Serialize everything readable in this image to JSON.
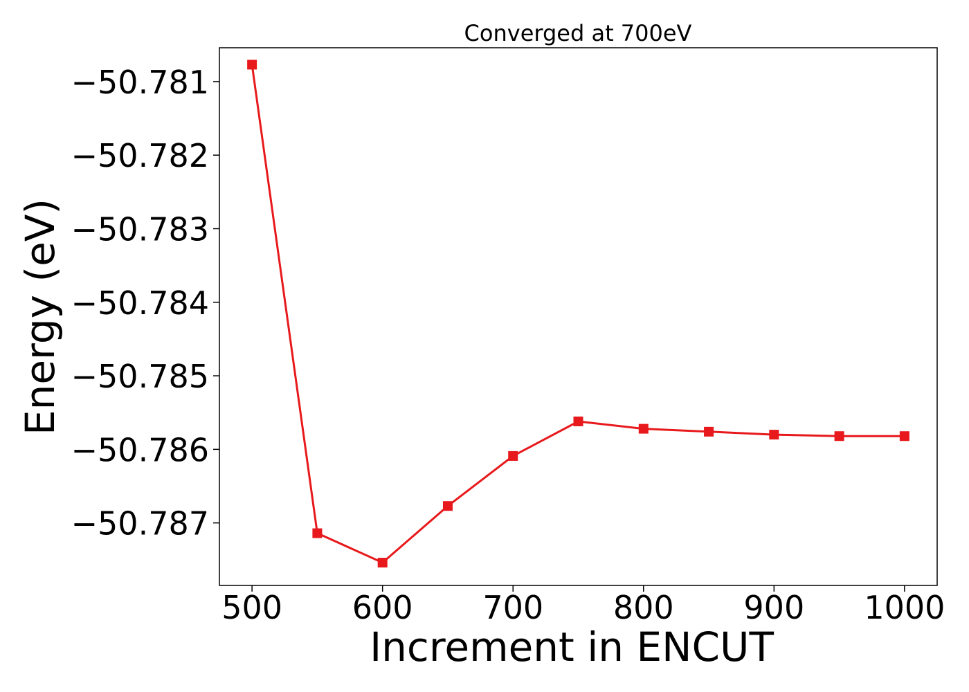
{
  "chart_data": {
    "type": "line",
    "title": "Converged at 700eV",
    "xlabel": "Increment in ENCUT",
    "ylabel": "Energy (eV)",
    "x": [
      500,
      550,
      600,
      650,
      700,
      750,
      800,
      850,
      900,
      950,
      1000
    ],
    "series": [
      {
        "values": [
          -50.78077,
          -50.78714,
          -50.78754,
          -50.78677,
          -50.78609,
          -50.78562,
          -50.78572,
          -50.78576,
          -50.7858,
          -50.78582,
          -50.78582
        ],
        "color": "#e8191c",
        "marker": "square"
      }
    ],
    "xticks": [
      500,
      600,
      700,
      800,
      900,
      1000
    ],
    "xtick_labels": [
      "500",
      "600",
      "700",
      "800",
      "900",
      "1000"
    ],
    "yticks": [
      -50.781,
      -50.782,
      -50.783,
      -50.784,
      -50.785,
      -50.786,
      -50.787
    ],
    "ytick_labels": [
      "−50.781",
      "−50.782",
      "−50.783",
      "−50.784",
      "−50.785",
      "−50.786",
      "−50.787"
    ],
    "xlim": [
      475,
      1025
    ],
    "ylim": [
      -50.78785,
      -50.78054
    ],
    "grid": false,
    "legend": "none"
  }
}
